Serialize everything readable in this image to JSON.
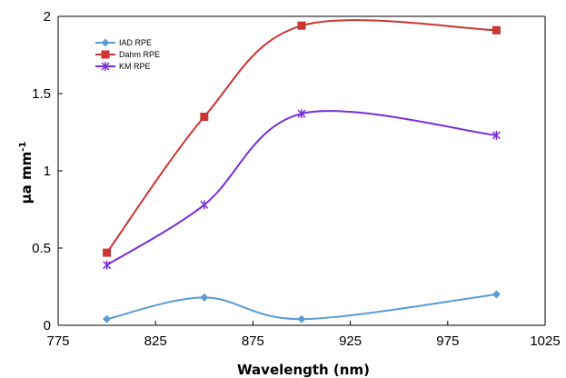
{
  "chart_data": {
    "type": "line",
    "title": "",
    "xlabel": "Wavelength (nm)",
    "ylabel_main": "μa mm",
    "ylabel_sup": "-1",
    "xlim": [
      775,
      1025
    ],
    "ylim": [
      0,
      2
    ],
    "x_ticks": [
      "775",
      "825",
      "875",
      "925",
      "975",
      "1025"
    ],
    "y_ticks": [
      "0",
      "0.5",
      "1",
      "1.5",
      "2"
    ],
    "x": [
      800,
      850,
      900,
      1000
    ],
    "grid": false,
    "legend_position": "top-left",
    "series": [
      {
        "name": "IAD RPE",
        "values": [
          0.04,
          0.18,
          0.04,
          0.2
        ],
        "color": "#5b9bd5",
        "marker": "diamond"
      },
      {
        "name": "Dahm RPE",
        "values": [
          0.47,
          1.35,
          1.94,
          1.91
        ],
        "color": "#cc3333",
        "marker": "square"
      },
      {
        "name": "KM RPE",
        "values": [
          0.39,
          0.78,
          1.37,
          1.23
        ],
        "color": "#7a2ed8",
        "marker": "star"
      }
    ]
  }
}
